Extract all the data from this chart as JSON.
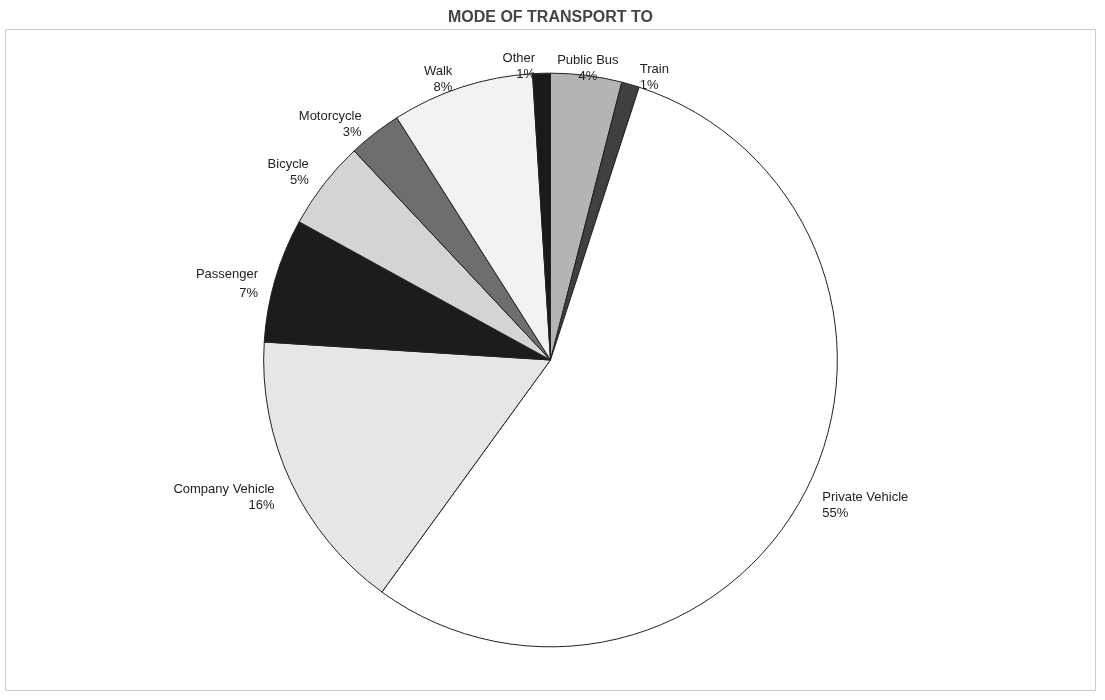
{
  "chart_data": {
    "type": "pie",
    "title": "MODE OF TRANSPORT TO",
    "categories": [
      "Public Bus",
      "Train",
      "Private Vehicle",
      "Company Vehicle",
      "Passenger",
      "Bicycle",
      "Motorcycle",
      "Walk",
      "Other"
    ],
    "values": [
      4,
      1,
      55,
      16,
      7,
      5,
      3,
      8,
      1
    ],
    "value_labels": [
      "4%",
      "1%",
      "55%",
      "16%",
      "7%",
      "5%",
      "3%",
      "8%",
      "1%"
    ],
    "colors": [
      "#b4b4b4",
      "#404040",
      "#ffffff",
      "#e6e6e6",
      "#1c1c1c",
      "#d4d4d4",
      "#6e6e6e",
      "#f2f2f2",
      "#1a1a1a"
    ]
  }
}
